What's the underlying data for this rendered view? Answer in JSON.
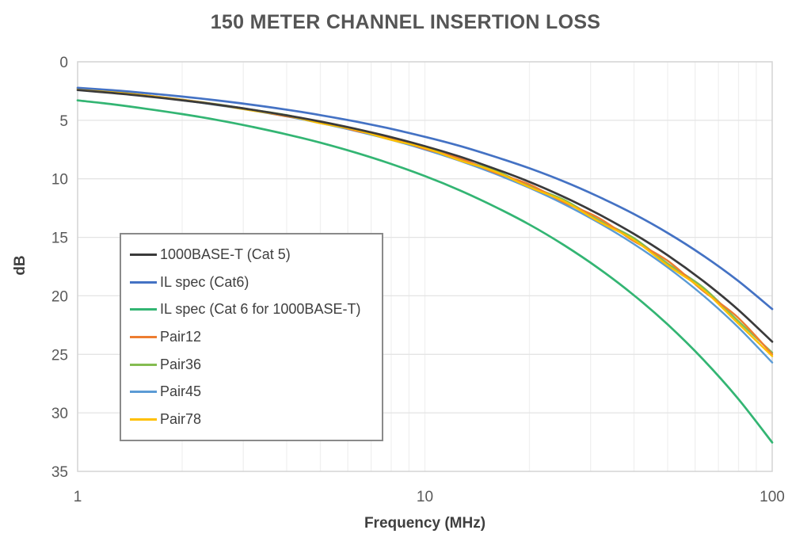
{
  "chart_data": {
    "type": "line",
    "title": "150 METER CHANNEL INSERTION LOSS",
    "xlabel": "Frequency (MHz)",
    "ylabel": "dB",
    "x_scale": "log",
    "x_range": [
      1,
      100
    ],
    "y_range": [
      0,
      35
    ],
    "y_axis_inverted": true,
    "x_ticks": [
      1,
      10,
      100
    ],
    "y_ticks": [
      0,
      5,
      10,
      15,
      20,
      25,
      30,
      35
    ],
    "grid": true,
    "legend_position": "inside-middle-left",
    "x": [
      1,
      1.26,
      1.58,
      2,
      2.51,
      3.16,
      3.98,
      5.01,
      6.31,
      7.94,
      10,
      12.6,
      15.8,
      20,
      25.1,
      31.6,
      39.8,
      50.1,
      63.1,
      79.4,
      100
    ],
    "series": [
      {
        "name": "1000BASE-T (Cat 5)",
        "color": "#3a3a3a",
        "values": [
          2.42,
          2.67,
          2.95,
          3.29,
          3.66,
          4.08,
          4.57,
          5.11,
          5.73,
          6.42,
          7.21,
          8.1,
          9.11,
          10.26,
          11.54,
          13.01,
          14.67,
          16.55,
          18.7,
          21.13,
          23.92
        ]
      },
      {
        "name": "IL spec (Cat6)",
        "color": "#4472c4",
        "values": [
          2.22,
          2.43,
          2.68,
          2.97,
          3.29,
          3.66,
          4.08,
          4.56,
          5.1,
          5.71,
          6.41,
          7.19,
          8.08,
          9.1,
          10.22,
          11.52,
          12.98,
          14.64,
          16.53,
          18.67,
          21.13
        ]
      },
      {
        "name": "IL spec (Cat 6 for 1000BASE-T)",
        "color": "#33b573",
        "values": [
          3.3,
          3.63,
          4.02,
          4.47,
          4.96,
          5.54,
          6.19,
          6.92,
          7.76,
          8.7,
          9.77,
          10.98,
          12.34,
          13.91,
          15.65,
          17.64,
          19.9,
          22.47,
          25.4,
          28.72,
          32.53
        ]
      },
      {
        "name": "Pair12",
        "color": "#ed7d31",
        "values": [
          2.28,
          2.57,
          2.88,
          3.24,
          3.64,
          4.09,
          4.65,
          5.12,
          5.88,
          6.49,
          7.45,
          8.24,
          9.44,
          10.48,
          12.0,
          13.33,
          15.29,
          17.02,
          19.55,
          21.81,
          25.0
        ]
      },
      {
        "name": "Pair36",
        "color": "#84bc51",
        "values": [
          2.27,
          2.55,
          2.87,
          3.23,
          3.62,
          4.08,
          4.54,
          5.21,
          5.74,
          6.59,
          7.29,
          8.36,
          9.26,
          10.63,
          11.78,
          13.52,
          15.03,
          17.26,
          19.25,
          22.09,
          24.85
        ]
      },
      {
        "name": "Pair45",
        "color": "#5b9bd5",
        "values": [
          2.31,
          2.59,
          2.91,
          3.28,
          3.69,
          4.15,
          4.66,
          5.25,
          5.91,
          6.65,
          7.5,
          8.46,
          9.53,
          10.78,
          12.15,
          13.74,
          15.54,
          17.59,
          19.94,
          22.62,
          25.7
        ]
      },
      {
        "name": "Pair78",
        "color": "#ffc000",
        "values": [
          2.29,
          2.58,
          2.89,
          3.26,
          3.66,
          4.15,
          4.59,
          5.25,
          5.81,
          6.65,
          7.36,
          8.43,
          9.34,
          10.72,
          11.9,
          13.64,
          15.19,
          17.42,
          19.45,
          22.3,
          25.15
        ]
      }
    ],
    "draw_order": [
      5,
      4,
      3,
      6,
      0,
      2,
      1
    ],
    "colors": {
      "grid_horizontal": "#e4e4e4",
      "grid_vertical": "#f0f0f0",
      "plot_border": "#d4d4d4",
      "tick_label": "#595959"
    }
  }
}
